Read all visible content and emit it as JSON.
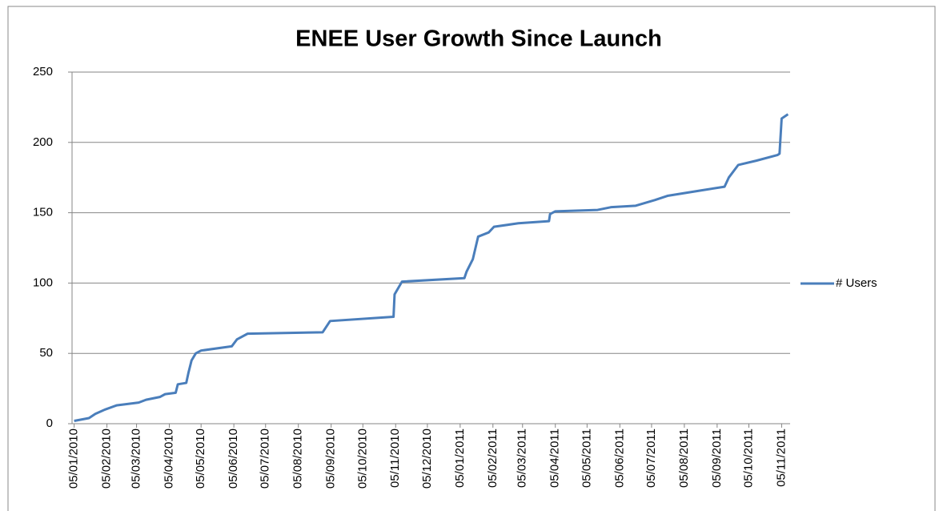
{
  "chart_data": {
    "type": "line",
    "title": "ENEE User Growth Since Launch",
    "x": [
      "2010-01-05",
      "2010-01-19",
      "2010-01-25",
      "2010-02-03",
      "2010-02-14",
      "2010-03-07",
      "2010-03-14",
      "2010-03-27",
      "2010-04-01",
      "2010-04-11",
      "2010-04-13",
      "2010-04-21",
      "2010-04-23",
      "2010-04-26",
      "2010-04-30",
      "2010-05-05",
      "2010-06-03",
      "2010-06-08",
      "2010-06-18",
      "2010-08-28",
      "2010-09-04",
      "2010-11-03",
      "2010-11-04",
      "2010-11-11",
      "2011-01-09",
      "2011-01-11",
      "2011-01-17",
      "2011-01-22",
      "2011-02-01",
      "2011-02-06",
      "2011-03-01",
      "2011-03-30",
      "2011-03-31",
      "2011-04-05",
      "2011-05-15",
      "2011-05-28",
      "2011-06-20",
      "2011-07-08",
      "2011-07-20",
      "2011-08-22",
      "2011-09-12",
      "2011-09-16",
      "2011-09-25",
      "2011-10-12",
      "2011-11-01",
      "2011-11-03",
      "2011-11-05",
      "2011-11-11"
    ],
    "series": [
      {
        "name": "# Users",
        "color": "#4a7ebb",
        "values": [
          2,
          4,
          7,
          10,
          13,
          15,
          17,
          19,
          21,
          22,
          28,
          29,
          36,
          45,
          50,
          52,
          55,
          60,
          64,
          65,
          73,
          76,
          92,
          101,
          103.5,
          108,
          117,
          133,
          136,
          140,
          142.5,
          144,
          149,
          151,
          152,
          154,
          155,
          159,
          162,
          166,
          168.5,
          175,
          184,
          187,
          191,
          192,
          217,
          220
        ]
      }
    ],
    "xlim": [
      "2010-01-03",
      "2011-11-13"
    ],
    "xticks": [
      {
        "value": "2010-01-05",
        "label": "05/01/2010"
      },
      {
        "value": "2010-02-05",
        "label": "05/02/2010"
      },
      {
        "value": "2010-03-05",
        "label": "05/03/2010"
      },
      {
        "value": "2010-04-05",
        "label": "05/04/2010"
      },
      {
        "value": "2010-05-05",
        "label": "05/05/2010"
      },
      {
        "value": "2010-06-05",
        "label": "05/06/2010"
      },
      {
        "value": "2010-07-05",
        "label": "05/07/2010"
      },
      {
        "value": "2010-08-05",
        "label": "05/08/2010"
      },
      {
        "value": "2010-09-05",
        "label": "05/09/2010"
      },
      {
        "value": "2010-10-05",
        "label": "05/10/2010"
      },
      {
        "value": "2010-11-05",
        "label": "05/11/2010"
      },
      {
        "value": "2010-12-05",
        "label": "05/12/2010"
      },
      {
        "value": "2011-01-05",
        "label": "05/01/2011"
      },
      {
        "value": "2011-02-05",
        "label": "05/02/2011"
      },
      {
        "value": "2011-03-05",
        "label": "05/03/2011"
      },
      {
        "value": "2011-04-05",
        "label": "05/04/2011"
      },
      {
        "value": "2011-05-05",
        "label": "05/05/2011"
      },
      {
        "value": "2011-06-05",
        "label": "05/06/2011"
      },
      {
        "value": "2011-07-05",
        "label": "05/07/2011"
      },
      {
        "value": "2011-08-05",
        "label": "05/08/2011"
      },
      {
        "value": "2011-09-05",
        "label": "05/09/2011"
      },
      {
        "value": "2011-10-05",
        "label": "05/10/2011"
      },
      {
        "value": "2011-11-05",
        "label": "05/11/2011"
      }
    ],
    "ylim": [
      0,
      250
    ],
    "yticks": [
      0,
      50,
      100,
      150,
      200,
      250
    ],
    "grid": true,
    "legend": "right"
  }
}
